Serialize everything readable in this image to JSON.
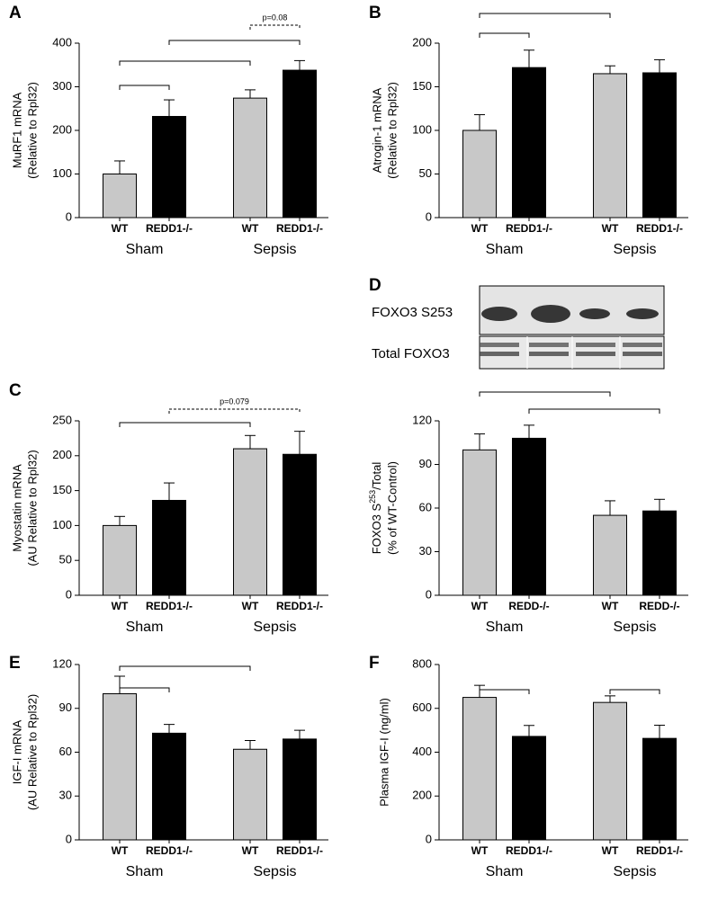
{
  "chart_data": [
    {
      "type": "bar",
      "panel": "A",
      "ylabel": [
        "MuRF1 mRNA",
        "(Relative to Rpl32)"
      ],
      "categories": [
        "WT",
        "REDD1-/-",
        "WT",
        "REDD1-/-"
      ],
      "groups": [
        "Sham",
        "Sepsis"
      ],
      "values": [
        100,
        232,
        274,
        338
      ],
      "errors": [
        30,
        38,
        19,
        22
      ],
      "colors": [
        "#c8c8c8",
        "#000000",
        "#c8c8c8",
        "#000000"
      ],
      "ylim": [
        0,
        400
      ],
      "yticks": [
        0,
        100,
        200,
        300,
        400
      ],
      "annotations": [
        "p=0.08"
      ]
    },
    {
      "type": "bar",
      "panel": "B",
      "ylabel": [
        "Atrogin-1 mRNA",
        "(Relative to Rpl32)"
      ],
      "categories": [
        "WT",
        "REDD1-/-",
        "WT",
        "REDD1-/-"
      ],
      "groups": [
        "Sham",
        "Sepsis"
      ],
      "values": [
        100,
        172,
        165,
        166
      ],
      "errors": [
        18,
        20,
        9,
        15
      ],
      "colors": [
        "#c8c8c8",
        "#000000",
        "#c8c8c8",
        "#000000"
      ],
      "ylim": [
        0,
        200
      ],
      "yticks": [
        0,
        50,
        100,
        150,
        200
      ]
    },
    {
      "type": "bar",
      "panel": "C",
      "ylabel": [
        "Myostatin mRNA",
        "(AU Relative to Rpl32)"
      ],
      "categories": [
        "WT",
        "REDD1-/-",
        "WT",
        "REDD1-/-"
      ],
      "groups": [
        "Sham",
        "Sepsis"
      ],
      "values": [
        100,
        136,
        210,
        202
      ],
      "errors": [
        13,
        25,
        19,
        33
      ],
      "colors": [
        "#c8c8c8",
        "#000000",
        "#c8c8c8",
        "#000000"
      ],
      "ylim": [
        0,
        250
      ],
      "yticks": [
        0,
        50,
        100,
        150,
        200,
        250
      ],
      "annotations": [
        "p=0.079"
      ]
    },
    {
      "type": "bar",
      "panel": "D",
      "ylabel": [
        {
          "text": "FOXO3 S",
          "sup": "253",
          "after": "/Total"
        },
        "(% of WT-Control)"
      ],
      "blot_labels": [
        "FOXO3 S253",
        "Total  FOXO3"
      ],
      "categories": [
        "WT",
        "REDD-/-",
        "WT",
        "REDD-/-"
      ],
      "groups": [
        "Sham",
        "Sepsis"
      ],
      "values": [
        100,
        108,
        55,
        58
      ],
      "errors": [
        11,
        9,
        10,
        8
      ],
      "colors": [
        "#c8c8c8",
        "#000000",
        "#c8c8c8",
        "#000000"
      ],
      "ylim": [
        0,
        120
      ],
      "yticks": [
        0,
        30,
        60,
        90,
        120
      ]
    },
    {
      "type": "bar",
      "panel": "E",
      "ylabel": [
        "IGF-I mRNA",
        "(AU Relative to Rpl32)"
      ],
      "categories": [
        "WT",
        "REDD1-/-",
        "WT",
        "REDD1-/-"
      ],
      "groups": [
        "Sham",
        "Sepsis"
      ],
      "values": [
        100,
        73,
        62,
        69
      ],
      "errors": [
        12,
        6,
        6,
        6
      ],
      "colors": [
        "#c8c8c8",
        "#000000",
        "#c8c8c8",
        "#000000"
      ],
      "ylim": [
        0,
        120
      ],
      "yticks": [
        0,
        30,
        60,
        90,
        120
      ]
    },
    {
      "type": "bar",
      "panel": "F",
      "ylabel": [
        "Plasma IGF-I  (ng/ml)"
      ],
      "categories": [
        "WT",
        "REDD1-/-",
        "WT",
        "REDD1-/-"
      ],
      "groups": [
        "Sham",
        "Sepsis"
      ],
      "values": [
        650,
        472,
        627,
        463
      ],
      "errors": [
        55,
        50,
        30,
        60
      ],
      "colors": [
        "#c8c8c8",
        "#000000",
        "#c8c8c8",
        "#000000"
      ],
      "ylim": [
        0,
        800
      ],
      "yticks": [
        0,
        200,
        400,
        600,
        800
      ]
    }
  ]
}
